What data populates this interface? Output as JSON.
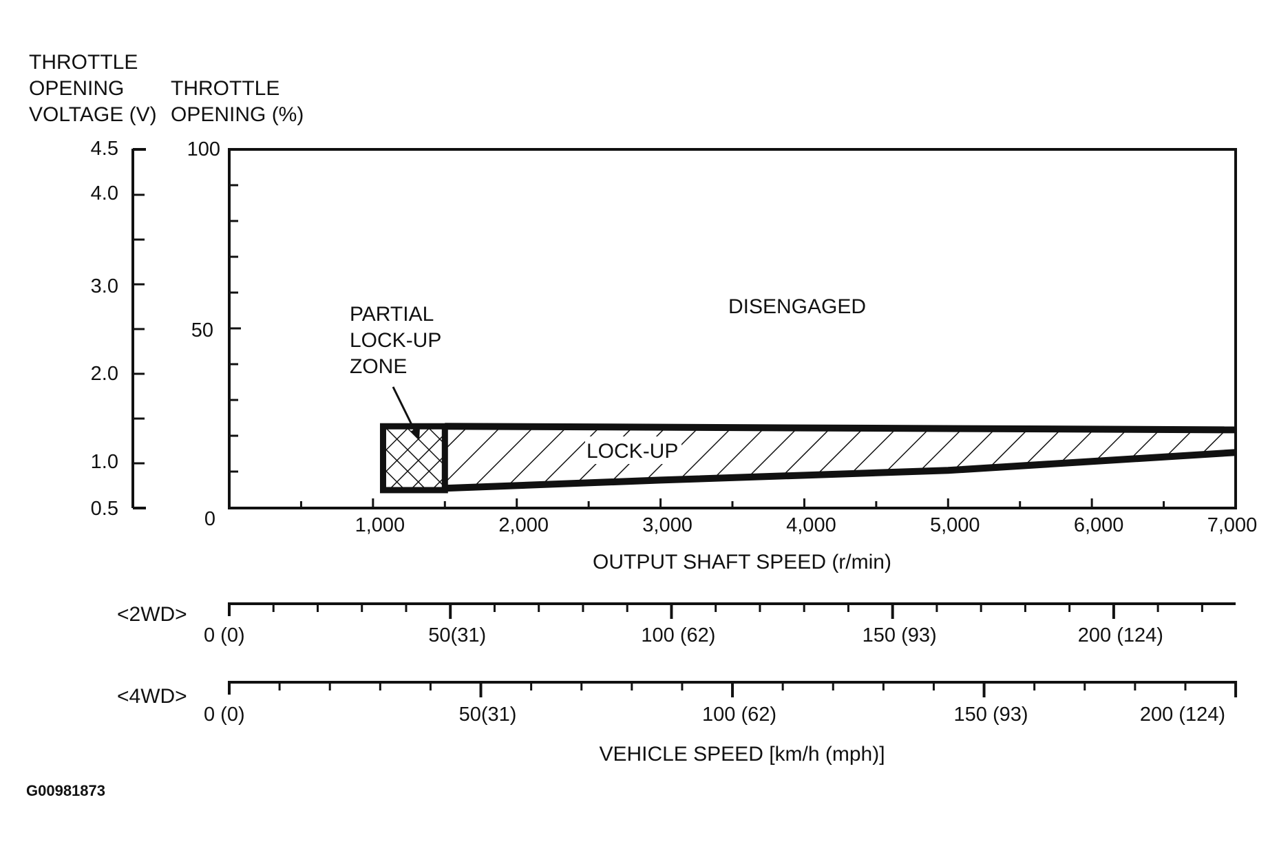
{
  "chart_data": {
    "type": "area",
    "title": "",
    "y_axes": {
      "voltage": {
        "label_lines": [
          "THROTTLE",
          "OPENING",
          "VOLTAGE (V)"
        ],
        "range": [
          0.5,
          4.5
        ],
        "ticks": [
          "0.5",
          "1.0",
          "2.0",
          "3.0",
          "4.0",
          "4.5"
        ]
      },
      "percent": {
        "label_lines": [
          "THROTTLE",
          "OPENING (%)"
        ],
        "range": [
          0,
          100
        ],
        "ticks": [
          "0",
          "50",
          "100"
        ]
      }
    },
    "x_axis": {
      "label": "OUTPUT SHAFT SPEED (r/min)",
      "range": [
        0,
        7000
      ],
      "ticks": [
        "1,000",
        "2,000",
        "3,000",
        "4,000",
        "5,000",
        "6,000",
        "7,000"
      ]
    },
    "zones": {
      "disengaged": {
        "label": "DISENGAGED"
      },
      "lockup": {
        "label": "LOCK-UP",
        "upper": [
          [
            1500,
            22.8
          ],
          [
            7000,
            21.8
          ]
        ],
        "lower": [
          [
            1500,
            5.5
          ],
          [
            3000,
            7.8
          ],
          [
            5000,
            10.5
          ],
          [
            7000,
            15.5
          ]
        ]
      },
      "partial": {
        "label_lines": [
          "PARTIAL",
          "LOCK-UP",
          "ZONE"
        ],
        "x_range": [
          1070,
          1500
        ],
        "y_range": [
          5.0,
          22.8
        ]
      }
    },
    "vehicle_speed_scales": [
      {
        "name": "<2WD>",
        "ticks": [
          "0 (0)",
          "50(31)",
          "100 (62)",
          "150 (93)",
          "200 (124)"
        ],
        "km_per_rpm": 0.03251
      },
      {
        "name": "<4WD>",
        "ticks": [
          "0 (0)",
          "50(31)",
          "100 (62)",
          "150 (93)",
          "200 (124)"
        ],
        "km_per_rpm": 0.02857
      }
    ],
    "vehicle_speed_label": "VEHICLE SPEED [km/h (mph)]"
  },
  "figure_code": "G00981873"
}
